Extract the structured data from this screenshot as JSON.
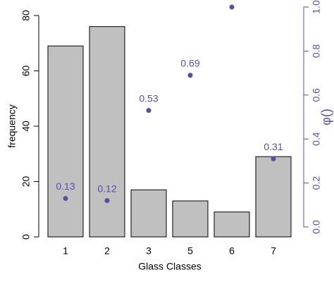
{
  "chart_data": {
    "type": "bar",
    "categories": [
      "1",
      "2",
      "3",
      "5",
      "6",
      "7"
    ],
    "values": [
      69,
      76,
      17,
      13,
      9,
      29
    ],
    "color": "#c0c0c0",
    "ylim": [
      0,
      80
    ],
    "yticks": [
      0,
      20,
      40,
      60,
      80
    ],
    "ylabel": "frequency",
    "xlabel": "Glass Classes",
    "y2lim": [
      0,
      1
    ],
    "y2ticks": [
      {
        "value": 0,
        "label": "0.0"
      },
      {
        "value": 0.2,
        "label": "0.2"
      },
      {
        "value": 0.4,
        "label": "0.4"
      },
      {
        "value": 0.6,
        "label": "0.6"
      },
      {
        "value": 0.8,
        "label": "0.8"
      },
      {
        "value": 1,
        "label": "1.0"
      }
    ],
    "y2label": "φ()",
    "series": [
      {
        "type": "scatter",
        "axis": "y2",
        "color": "#5b4ea0",
        "values": [
          0.13,
          0.12,
          0.53,
          0.69,
          1,
          0.31
        ]
      }
    ]
  }
}
